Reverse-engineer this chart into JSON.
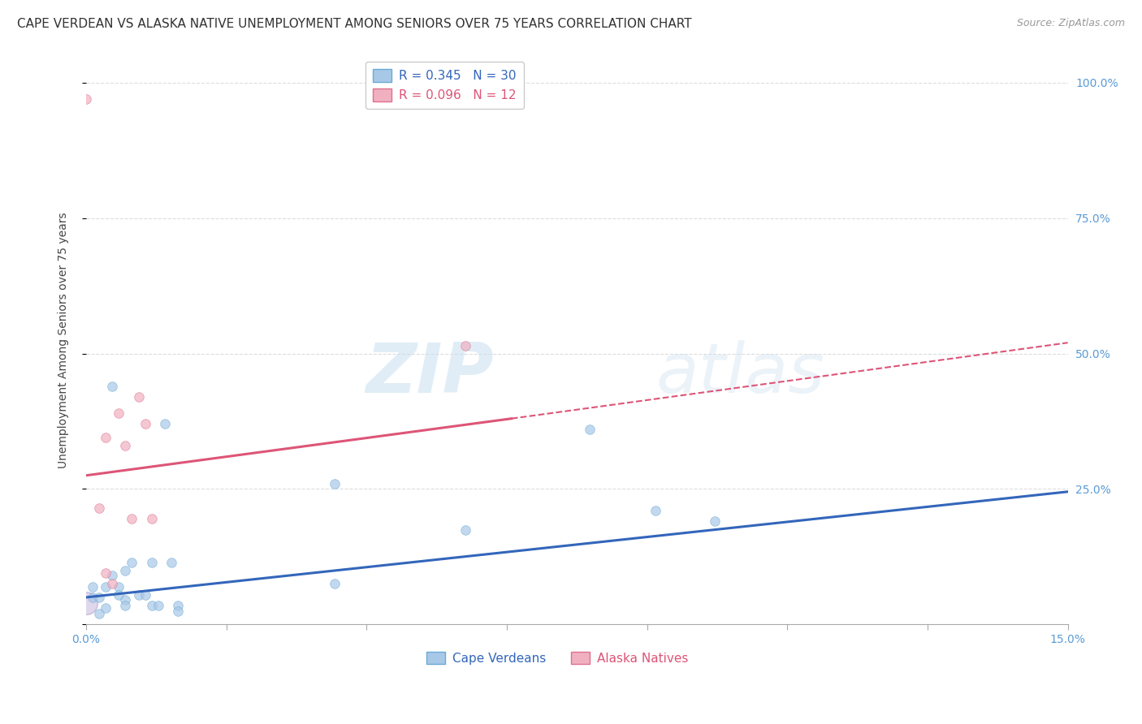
{
  "title": "CAPE VERDEAN VS ALASKA NATIVE UNEMPLOYMENT AMONG SENIORS OVER 75 YEARS CORRELATION CHART",
  "source": "Source: ZipAtlas.com",
  "ylabel": "Unemployment Among Seniors over 75 years",
  "xlim": [
    0.0,
    0.15
  ],
  "ylim": [
    0.0,
    1.05
  ],
  "watermark_zip": "ZIP",
  "watermark_atlas": "atlas",
  "cape_verdean_points": [
    [
      0.0,
      0.04
    ],
    [
      0.001,
      0.07
    ],
    [
      0.001,
      0.05
    ],
    [
      0.002,
      0.02
    ],
    [
      0.002,
      0.05
    ],
    [
      0.003,
      0.07
    ],
    [
      0.003,
      0.03
    ],
    [
      0.004,
      0.44
    ],
    [
      0.004,
      0.09
    ],
    [
      0.005,
      0.07
    ],
    [
      0.005,
      0.055
    ],
    [
      0.006,
      0.1
    ],
    [
      0.006,
      0.045
    ],
    [
      0.006,
      0.035
    ],
    [
      0.007,
      0.115
    ],
    [
      0.008,
      0.055
    ],
    [
      0.009,
      0.055
    ],
    [
      0.01,
      0.115
    ],
    [
      0.01,
      0.035
    ],
    [
      0.011,
      0.035
    ],
    [
      0.012,
      0.37
    ],
    [
      0.013,
      0.115
    ],
    [
      0.014,
      0.035
    ],
    [
      0.014,
      0.025
    ],
    [
      0.038,
      0.26
    ],
    [
      0.038,
      0.075
    ],
    [
      0.058,
      0.175
    ],
    [
      0.077,
      0.36
    ],
    [
      0.087,
      0.21
    ],
    [
      0.096,
      0.19
    ]
  ],
  "alaska_native_points": [
    [
      0.0,
      0.97
    ],
    [
      0.002,
      0.215
    ],
    [
      0.003,
      0.095
    ],
    [
      0.003,
      0.345
    ],
    [
      0.004,
      0.075
    ],
    [
      0.005,
      0.39
    ],
    [
      0.006,
      0.33
    ],
    [
      0.007,
      0.195
    ],
    [
      0.008,
      0.42
    ],
    [
      0.009,
      0.37
    ],
    [
      0.01,
      0.195
    ],
    [
      0.058,
      0.515
    ]
  ],
  "cv_point_size": 70,
  "cv_large_size": 400,
  "an_point_size": 70,
  "cape_verdean_line": [
    [
      0.0,
      0.05
    ],
    [
      0.15,
      0.245
    ]
  ],
  "alaska_native_line_solid": [
    [
      0.0,
      0.275
    ],
    [
      0.065,
      0.38
    ]
  ],
  "alaska_native_line_dashed": [
    [
      0.065,
      0.38
    ],
    [
      0.15,
      0.52
    ]
  ],
  "cv_fill_color": "#a8c8e8",
  "cv_edge_color": "#6aaad4",
  "an_fill_color": "#f0b0c0",
  "an_edge_color": "#e07090",
  "cv_line_color": "#3366bb",
  "an_line_color": "#dd5577",
  "background_color": "#ffffff",
  "grid_color": "#dddddd",
  "title_fontsize": 11,
  "axis_label_fontsize": 10,
  "tick_fontsize": 10,
  "right_tick_color": "#5b9bd5",
  "x_tick_labels": [
    "0.0%",
    "",
    "",
    "",
    "",
    "",
    "",
    "15.0%"
  ],
  "y_ticks": [
    0.0,
    0.25,
    0.5,
    0.75,
    1.0
  ],
  "y_tick_right_labels": [
    "",
    "25.0%",
    "50.0%",
    "75.0%",
    "100.0%"
  ],
  "legend_r1": "R = 0.345",
  "legend_n1": "N = 30",
  "legend_r2": "R = 0.096",
  "legend_n2": "N = 12",
  "bottom_label1": "Cape Verdeans",
  "bottom_label2": "Alaska Natives"
}
